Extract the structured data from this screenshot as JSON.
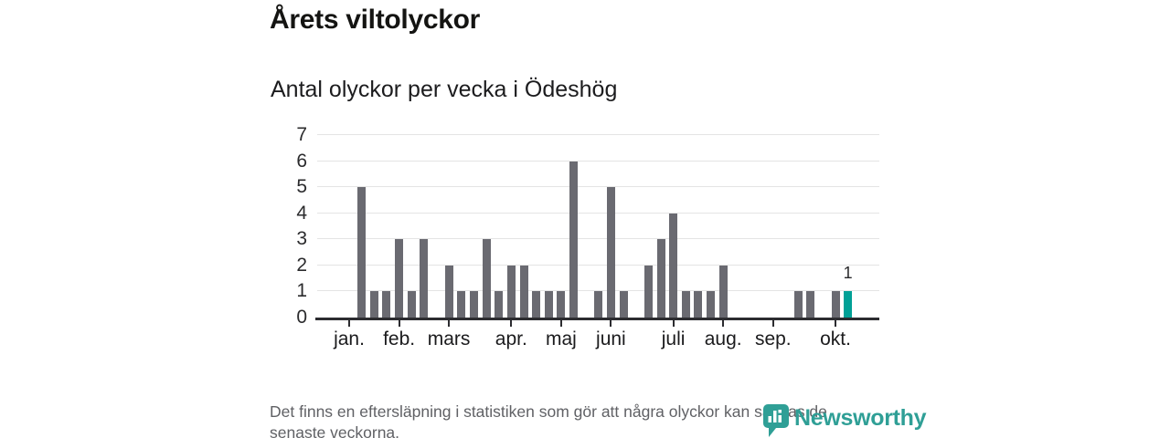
{
  "chart_data": {
    "type": "bar",
    "title": "Årets viltolyckor",
    "subtitle": "Antal olyckor per vecka i Ödeshög",
    "x_unit": "vecka",
    "x_range": [
      1,
      41
    ],
    "values": [
      0,
      5,
      1,
      1,
      3,
      1,
      3,
      0,
      2,
      1,
      1,
      3,
      1,
      2,
      2,
      1,
      1,
      1,
      6,
      0,
      1,
      5,
      1,
      0,
      2,
      3,
      4,
      1,
      1,
      1,
      2,
      0,
      0,
      0,
      0,
      0,
      1,
      1,
      0,
      1,
      1
    ],
    "ylim": [
      0,
      7
    ],
    "yticks": [
      0,
      1,
      2,
      3,
      4,
      5,
      6,
      7
    ],
    "grid": "horizontal",
    "month_ticks": [
      {
        "label": "jan.",
        "week": 1
      },
      {
        "label": "feb.",
        "week": 5
      },
      {
        "label": "mars",
        "week": 9
      },
      {
        "label": "apr.",
        "week": 14
      },
      {
        "label": "maj",
        "week": 18
      },
      {
        "label": "juni",
        "week": 22
      },
      {
        "label": "juli",
        "week": 27
      },
      {
        "label": "aug.",
        "week": 31
      },
      {
        "label": "sep.",
        "week": 35
      },
      {
        "label": "okt.",
        "week": 40
      }
    ],
    "highlight_week": 41,
    "annotation": {
      "week": 41,
      "label": "1"
    },
    "colors": {
      "bar": "#6a6a71",
      "highlight": "#00a096",
      "grid": "#e4e4e4",
      "axis": "#2c2c30",
      "annotation": "#29292b"
    }
  },
  "footer": {
    "note_lines": [
      "Det finns en eftersläpning i statistiken som gör att några olyckor kan saknas de",
      "senaste veckorna."
    ],
    "logo_text": "Newsworthy"
  },
  "brand": {
    "logo_color": "#2f9f96"
  }
}
